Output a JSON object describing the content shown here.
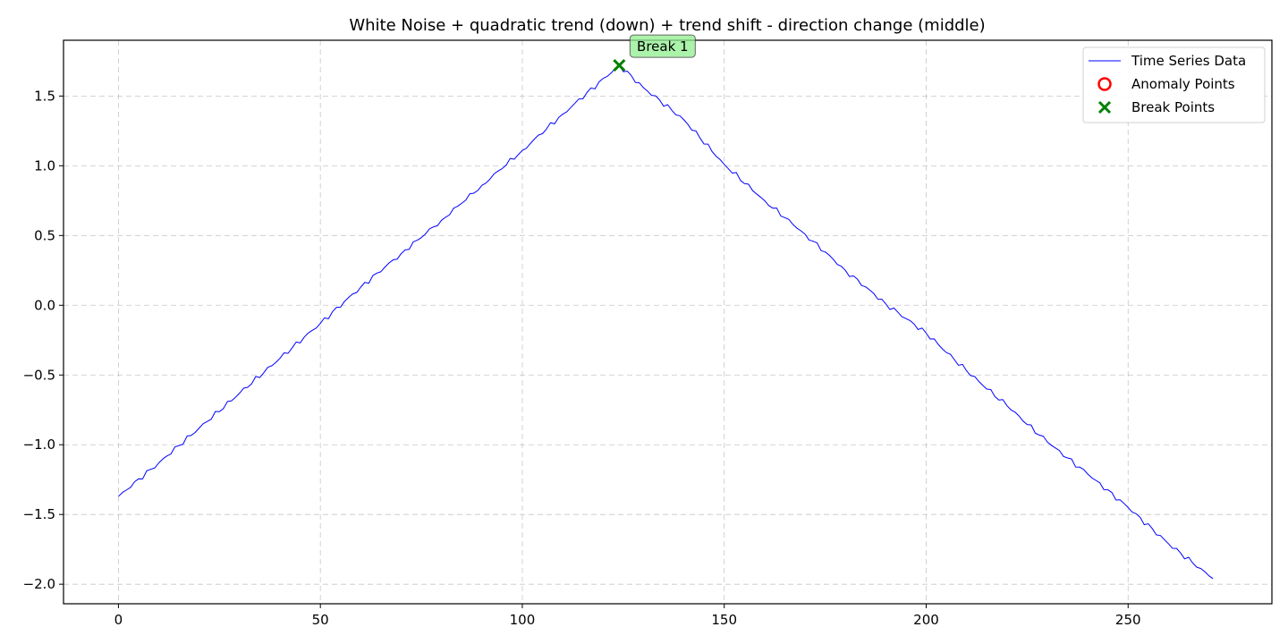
{
  "chart_data": {
    "type": "line",
    "title": "White Noise + quadratic trend (down) + trend shift - direction change (middle)",
    "xlabel": "",
    "ylabel": "",
    "xlim": [
      -13.6,
      285.6
    ],
    "ylim": [
      -2.14,
      1.9
    ],
    "xticks": [
      0,
      50,
      100,
      150,
      200,
      250
    ],
    "xtick_labels": [
      "0",
      "50",
      "100",
      "150",
      "200",
      "250"
    ],
    "yticks": [
      -2.0,
      -1.5,
      -1.0,
      -0.5,
      0.0,
      0.5,
      1.0,
      1.5
    ],
    "ytick_labels": [
      "−2.0",
      "−1.5",
      "−1.0",
      "−0.5",
      "0.0",
      "0.5",
      "1.0",
      "1.5"
    ],
    "grid": true,
    "legend_position": "top-right",
    "series": [
      {
        "name": "Time Series Data",
        "color": "#0000ff",
        "x": [
          0,
          10,
          20,
          30,
          40,
          50,
          60,
          70,
          80,
          90,
          100,
          110,
          124,
          130,
          140,
          150,
          160,
          170,
          180,
          190,
          200,
          210,
          220,
          230,
          240,
          250,
          260,
          271
        ],
        "y": [
          -1.37,
          -1.13,
          -0.88,
          -0.63,
          -0.38,
          -0.13,
          0.13,
          0.37,
          0.61,
          0.86,
          1.11,
          1.37,
          1.72,
          1.56,
          1.33,
          1.01,
          0.75,
          0.51,
          0.25,
          0.01,
          -0.2,
          -0.47,
          -0.72,
          -0.98,
          -1.21,
          -1.45,
          -1.71,
          -1.96
        ]
      }
    ],
    "anomaly_points": {
      "name": "Anomaly Points",
      "color": "#ff0000",
      "points": []
    },
    "break_points": {
      "name": "Break Points",
      "color": "#008000",
      "points": [
        {
          "x": 124,
          "y": 1.72,
          "label": "Break 1"
        }
      ]
    },
    "annotation_box_color": "#90ee90"
  }
}
